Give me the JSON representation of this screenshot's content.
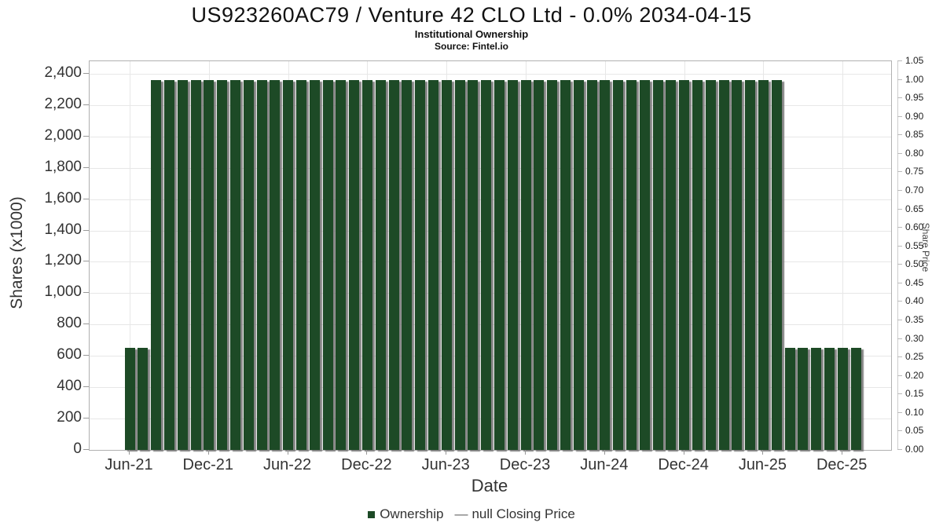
{
  "chart_data": {
    "type": "bar",
    "title": "US923260AC79 / Venture 42 CLO Ltd - 0.0% 2034-04-15",
    "subtitle": "Institutional Ownership",
    "source": "Source: Fintel.io",
    "xlabel": "Date",
    "ylabel_left": "Shares (x1000)",
    "ylabel_right": "Share Price",
    "grid": true,
    "legend_position": "bottom-center",
    "x_start_month": "Jun-21",
    "x_end_month": "Jan-26",
    "x_ticks": [
      {
        "label": "Jun-21",
        "month_index": 0
      },
      {
        "label": "Dec-21",
        "month_index": 6
      },
      {
        "label": "Jun-22",
        "month_index": 12
      },
      {
        "label": "Dec-22",
        "month_index": 18
      },
      {
        "label": "Jun-23",
        "month_index": 24
      },
      {
        "label": "Dec-23",
        "month_index": 30
      },
      {
        "label": "Jun-24",
        "month_index": 36
      },
      {
        "label": "Dec-24",
        "month_index": 42
      },
      {
        "label": "Jun-25",
        "month_index": 48
      },
      {
        "label": "Dec-25",
        "month_index": 54
      }
    ],
    "ylim_left": [
      0,
      2480
    ],
    "yticks_left_step": 200,
    "yticks_left_labels": [
      "0",
      "200",
      "400",
      "600",
      "800",
      "1,000",
      "1,200",
      "1,400",
      "1,600",
      "1,800",
      "2,000",
      "2,200",
      "2,400"
    ],
    "ylim_right": [
      0,
      1.05
    ],
    "yticks_right_step": 0.05,
    "yticks_right_labels": [
      "0.00",
      "0.05",
      "0.10",
      "0.15",
      "0.20",
      "0.25",
      "0.30",
      "0.35",
      "0.40",
      "0.45",
      "0.50",
      "0.55",
      "0.60",
      "0.65",
      "0.70",
      "0.75",
      "0.80",
      "0.85",
      "0.90",
      "0.95",
      "1.00",
      "1.05"
    ],
    "series": [
      {
        "name": "Ownership",
        "unit": "shares_x1000",
        "values": [
          650,
          650,
          2360,
          2360,
          2360,
          2360,
          2360,
          2360,
          2360,
          2360,
          2360,
          2360,
          2360,
          2360,
          2360,
          2360,
          2360,
          2360,
          2360,
          2360,
          2360,
          2360,
          2360,
          2360,
          2360,
          2360,
          2360,
          2360,
          2360,
          2360,
          2360,
          2360,
          2360,
          2360,
          2360,
          2360,
          2360,
          2360,
          2360,
          2360,
          2360,
          2360,
          2360,
          2360,
          2360,
          2360,
          2360,
          2360,
          2360,
          2360,
          650,
          650,
          650,
          650,
          650,
          650
        ]
      },
      {
        "name": "null Closing Price",
        "unit": "share_price",
        "values": []
      }
    ],
    "legend": [
      {
        "label": "Ownership",
        "marker": "square",
        "color": "#1d4a26"
      },
      {
        "label": "null Closing Price",
        "marker": "line",
        "color": "#666666",
        "dash_glyph": "—"
      }
    ],
    "colors": {
      "bar": "#1d4a26",
      "bar_shadow": "#6e6e6e",
      "gridline": "#e7e7e7",
      "plot_border": "#b0b0b0"
    }
  }
}
